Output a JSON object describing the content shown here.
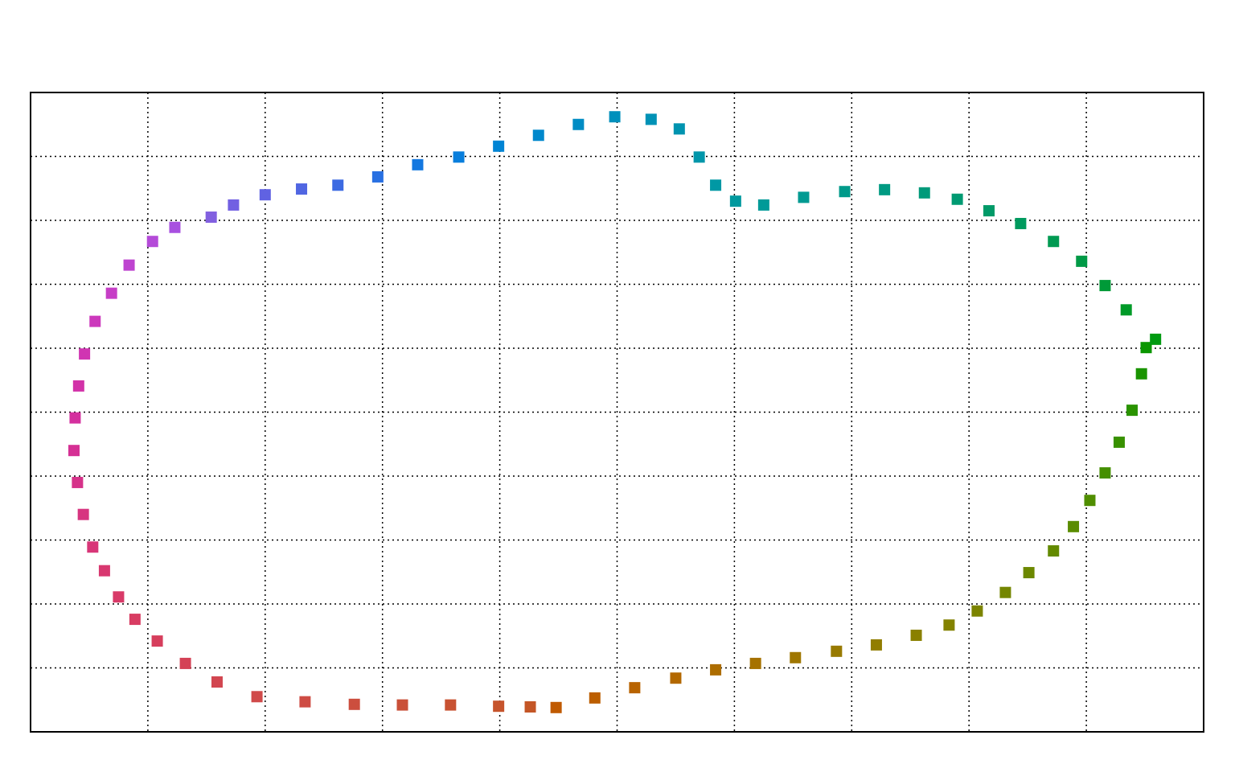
{
  "chart_data": {
    "type": "scatter",
    "marker": "square",
    "grid": true,
    "xlim": [
      0,
      10
    ],
    "ylim": [
      0,
      10
    ],
    "xticks": [
      0,
      1,
      2,
      3,
      4,
      5,
      6,
      7,
      8,
      9,
      10
    ],
    "yticks": [
      0,
      1,
      2,
      3,
      4,
      5,
      6,
      7,
      8,
      9,
      10
    ],
    "x": [
      4.48,
      4.81,
      5.15,
      5.5,
      5.84,
      6.18,
      6.52,
      6.87,
      7.21,
      7.55,
      7.83,
      8.07,
      8.31,
      8.51,
      8.72,
      8.89,
      9.03,
      9.16,
      9.28,
      9.39,
      9.47,
      9.51,
      9.59,
      9.34,
      9.16,
      8.96,
      8.72,
      8.44,
      8.17,
      7.9,
      7.62,
      7.28,
      6.94,
      6.59,
      6.25,
      6.01,
      5.84,
      5.7,
      5.53,
      5.29,
      4.98,
      4.67,
      4.33,
      3.99,
      3.65,
      3.3,
      2.96,
      2.62,
      2.31,
      2.0,
      1.73,
      1.54,
      1.23,
      1.04,
      0.84,
      0.69,
      0.55,
      0.46,
      0.41,
      0.38,
      0.37,
      0.4,
      0.45,
      0.53,
      0.63,
      0.75,
      0.89,
      1.08,
      1.32,
      1.59,
      1.93,
      2.34,
      2.76,
      3.17,
      3.58,
      3.99,
      4.26
    ],
    "values": [
      0.38,
      0.53,
      0.69,
      0.84,
      0.97,
      1.07,
      1.16,
      1.26,
      1.36,
      1.51,
      1.67,
      1.89,
      2.18,
      2.49,
      2.83,
      3.21,
      3.62,
      4.05,
      4.53,
      5.03,
      5.6,
      6.01,
      6.14,
      6.6,
      6.98,
      7.36,
      7.67,
      7.95,
      8.15,
      8.33,
      8.43,
      8.48,
      8.45,
      8.36,
      8.24,
      8.3,
      8.55,
      8.99,
      9.43,
      9.58,
      9.62,
      9.5,
      9.33,
      9.16,
      8.99,
      8.87,
      8.68,
      8.55,
      8.49,
      8.4,
      8.24,
      8.05,
      7.89,
      7.67,
      7.3,
      6.86,
      6.42,
      5.91,
      5.41,
      4.91,
      4.4,
      3.9,
      3.4,
      2.89,
      2.52,
      2.11,
      1.76,
      1.42,
      1.07,
      0.78,
      0.55,
      0.47,
      0.43,
      0.42,
      0.42,
      0.4,
      0.39
    ],
    "colors": [
      "#c05a00",
      "#bc5e00",
      "#b86300",
      "#b36800",
      "#ad6d00",
      "#a67200",
      "#9f7600",
      "#987a00",
      "#917d00",
      "#8a8000",
      "#838200",
      "#7c8400",
      "#748600",
      "#6c8800",
      "#638a00",
      "#5a8c00",
      "#508e00",
      "#458f00",
      "#389100",
      "#2a9300",
      "#1a9400",
      "#0a9600",
      "#009a10",
      "#009a28",
      "#009a38",
      "#009a46",
      "#009a52",
      "#009a5e",
      "#009a68",
      "#009a72",
      "#009a7a",
      "#009a82",
      "#009a8a",
      "#009a92",
      "#009a98",
      "#00999e",
      "#0098a4",
      "#0096aa",
      "#0094b0",
      "#0092b6",
      "#0090bc",
      "#008cc4",
      "#0088cc",
      "#0084d4",
      "#087edc",
      "#1478e0",
      "#2870e2",
      "#3c6ae2",
      "#5066e2",
      "#6062e2",
      "#7260e2",
      "#8260e0",
      "#a850e0",
      "#b44ad8",
      "#be44d0",
      "#c63ec6",
      "#cc38bc",
      "#d034b2",
      "#d232a8",
      "#d4309e",
      "#d53094",
      "#d6328a",
      "#d73480",
      "#d83678",
      "#d83870",
      "#d83a68",
      "#d83c62",
      "#d63e5c",
      "#d44256",
      "#d24650",
      "#d04a4a",
      "#ce4c44",
      "#cc4e3e",
      "#ca5038",
      "#c85232",
      "#c6542c",
      "#c45626"
    ]
  }
}
